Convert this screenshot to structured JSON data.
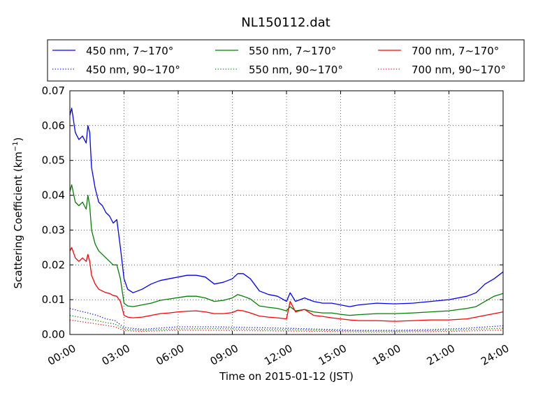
{
  "chart_data": {
    "type": "line",
    "title": "NL150112.dat",
    "xlabel": "Time on 2015-01-12 (JST)",
    "ylabel_text": "Scattering Coefficient (km",
    "ylabel_sup": "−1",
    "ylabel_end": ")",
    "x_unit": "hours",
    "xlim": [
      0,
      24
    ],
    "ylim": [
      0,
      0.07
    ],
    "xticks": [
      0,
      3,
      6,
      9,
      12,
      15,
      18,
      21,
      24
    ],
    "xtick_labels": [
      "00:00",
      "03:00",
      "06:00",
      "09:00",
      "12:00",
      "15:00",
      "18:00",
      "21:00",
      "24:00"
    ],
    "yticks": [
      0,
      0.01,
      0.02,
      0.03,
      0.04,
      0.05,
      0.06,
      0.07
    ],
    "ytick_labels": [
      "0.00",
      "0.01",
      "0.02",
      "0.03",
      "0.04",
      "0.05",
      "0.06",
      "0.07"
    ],
    "grid": true,
    "legend_position": "top, above plot, 3 columns",
    "series": [
      {
        "name": "450 nm, 7∼170°",
        "color": "#0000ff",
        "style": "solid",
        "x": [
          0,
          0.1,
          0.3,
          0.5,
          0.7,
          0.9,
          1.0,
          1.1,
          1.2,
          1.4,
          1.6,
          1.8,
          2.0,
          2.2,
          2.4,
          2.6,
          2.8,
          3.0,
          3.2,
          3.5,
          4.0,
          4.5,
          5.0,
          5.5,
          6.0,
          6.5,
          7.0,
          7.5,
          8.0,
          8.5,
          9.0,
          9.3,
          9.6,
          10.0,
          10.5,
          11.0,
          11.5,
          12.0,
          12.2,
          12.5,
          13.0,
          13.5,
          14.0,
          14.5,
          15.0,
          15.5,
          16.0,
          17.0,
          18.0,
          19.0,
          20.0,
          21.0,
          22.0,
          22.5,
          23.0,
          23.5,
          24.0
        ],
        "values": [
          0.063,
          0.065,
          0.058,
          0.056,
          0.057,
          0.055,
          0.06,
          0.058,
          0.048,
          0.042,
          0.038,
          0.037,
          0.035,
          0.034,
          0.032,
          0.033,
          0.025,
          0.016,
          0.013,
          0.012,
          0.013,
          0.0145,
          0.0155,
          0.016,
          0.0165,
          0.017,
          0.017,
          0.0165,
          0.0145,
          0.015,
          0.016,
          0.0175,
          0.0175,
          0.016,
          0.0125,
          0.0115,
          0.011,
          0.0095,
          0.012,
          0.0095,
          0.0105,
          0.0095,
          0.009,
          0.009,
          0.0085,
          0.008,
          0.0085,
          0.009,
          0.0088,
          0.009,
          0.0095,
          0.01,
          0.011,
          0.012,
          0.0145,
          0.016,
          0.018
        ]
      },
      {
        "name": "550 nm, 7∼170°",
        "color": "#008000",
        "style": "solid",
        "x": [
          0,
          0.1,
          0.3,
          0.5,
          0.7,
          0.9,
          1.0,
          1.1,
          1.2,
          1.4,
          1.6,
          1.8,
          2.0,
          2.2,
          2.4,
          2.6,
          2.8,
          3.0,
          3.2,
          3.5,
          4.0,
          4.5,
          5.0,
          5.5,
          6.0,
          6.5,
          7.0,
          7.5,
          8.0,
          8.5,
          9.0,
          9.3,
          9.6,
          10.0,
          10.5,
          11.0,
          11.5,
          12.0,
          12.2,
          12.5,
          13.0,
          13.5,
          14.0,
          14.5,
          15.0,
          15.5,
          16.0,
          17.0,
          18.0,
          19.0,
          20.0,
          21.0,
          22.0,
          22.5,
          23.0,
          23.5,
          24.0
        ],
        "values": [
          0.041,
          0.043,
          0.038,
          0.037,
          0.038,
          0.036,
          0.04,
          0.037,
          0.03,
          0.026,
          0.024,
          0.023,
          0.022,
          0.021,
          0.02,
          0.02,
          0.016,
          0.009,
          0.0082,
          0.008,
          0.0085,
          0.009,
          0.0098,
          0.0102,
          0.0106,
          0.011,
          0.011,
          0.0105,
          0.0095,
          0.0098,
          0.0105,
          0.0115,
          0.011,
          0.0102,
          0.0082,
          0.0078,
          0.0075,
          0.0068,
          0.008,
          0.0068,
          0.0072,
          0.0065,
          0.0062,
          0.0062,
          0.0058,
          0.0055,
          0.0057,
          0.006,
          0.006,
          0.0062,
          0.0065,
          0.0068,
          0.0075,
          0.008,
          0.0095,
          0.011,
          0.0118
        ]
      },
      {
        "name": "700 nm, 7∼170°",
        "color": "#ff0000",
        "style": "solid",
        "x": [
          0,
          0.1,
          0.3,
          0.5,
          0.7,
          0.9,
          1.0,
          1.1,
          1.2,
          1.4,
          1.6,
          1.8,
          2.0,
          2.2,
          2.4,
          2.6,
          2.8,
          3.0,
          3.2,
          3.5,
          4.0,
          4.5,
          5.0,
          5.5,
          6.0,
          6.5,
          7.0,
          7.5,
          8.0,
          8.5,
          9.0,
          9.3,
          9.6,
          10.0,
          10.5,
          11.0,
          11.5,
          12.0,
          12.2,
          12.5,
          13.0,
          13.5,
          14.0,
          14.5,
          15.0,
          15.5,
          16.0,
          17.0,
          18.0,
          19.0,
          20.0,
          21.0,
          22.0,
          22.5,
          23.0,
          23.5,
          24.0
        ],
        "values": [
          0.024,
          0.025,
          0.022,
          0.021,
          0.022,
          0.021,
          0.023,
          0.021,
          0.017,
          0.0145,
          0.013,
          0.0125,
          0.012,
          0.0118,
          0.0112,
          0.011,
          0.0095,
          0.0055,
          0.005,
          0.0048,
          0.005,
          0.0055,
          0.006,
          0.0062,
          0.0065,
          0.0067,
          0.0068,
          0.0065,
          0.006,
          0.006,
          0.0063,
          0.007,
          0.0068,
          0.0062,
          0.0053,
          0.005,
          0.0048,
          0.0045,
          0.0095,
          0.0065,
          0.0072,
          0.0055,
          0.0052,
          0.0048,
          0.0045,
          0.0042,
          0.004,
          0.004,
          0.0038,
          0.004,
          0.0042,
          0.0042,
          0.0045,
          0.005,
          0.0055,
          0.006,
          0.0065
        ]
      },
      {
        "name": "450 nm, 90∼170°",
        "color": "#0000ff",
        "style": "dotted",
        "x": [
          0,
          0.5,
          1.0,
          1.5,
          2.0,
          2.5,
          3.0,
          4.0,
          6.0,
          8.0,
          10.0,
          12.0,
          14.0,
          16.0,
          18.0,
          20.0,
          22.0,
          24.0
        ],
        "values": [
          0.0075,
          0.0068,
          0.0062,
          0.0055,
          0.0045,
          0.004,
          0.002,
          0.0015,
          0.0022,
          0.0022,
          0.002,
          0.0018,
          0.0015,
          0.0012,
          0.0012,
          0.0014,
          0.0018,
          0.0025
        ]
      },
      {
        "name": "550 nm, 90∼170°",
        "color": "#008000",
        "style": "dotted",
        "x": [
          0,
          0.5,
          1.0,
          1.5,
          2.0,
          2.5,
          3.0,
          4.0,
          6.0,
          8.0,
          10.0,
          12.0,
          14.0,
          16.0,
          18.0,
          20.0,
          22.0,
          24.0
        ],
        "values": [
          0.0055,
          0.005,
          0.0045,
          0.004,
          0.0034,
          0.003,
          0.0015,
          0.0012,
          0.0016,
          0.0017,
          0.0015,
          0.0014,
          0.0012,
          0.001,
          0.001,
          0.0011,
          0.0014,
          0.0018
        ]
      },
      {
        "name": "700 nm, 90∼170°",
        "color": "#ff0000",
        "style": "dotted",
        "x": [
          0,
          0.5,
          1.0,
          1.5,
          2.0,
          2.5,
          3.0,
          4.0,
          6.0,
          8.0,
          10.0,
          12.0,
          14.0,
          16.0,
          18.0,
          20.0,
          22.0,
          24.0
        ],
        "values": [
          0.0042,
          0.0038,
          0.0034,
          0.003,
          0.0026,
          0.0022,
          0.0011,
          0.0009,
          0.0012,
          0.0012,
          0.0011,
          0.001,
          0.0009,
          0.0007,
          0.0007,
          0.0008,
          0.001,
          0.0013
        ]
      }
    ]
  }
}
